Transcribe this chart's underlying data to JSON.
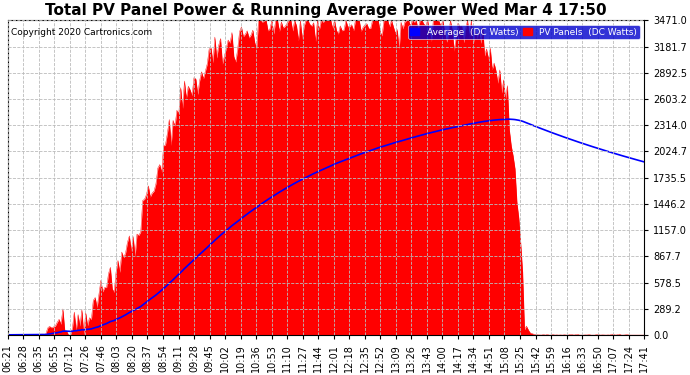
{
  "title": "Total PV Panel Power & Running Average Power Wed Mar 4 17:50",
  "copyright": "Copyright 2020 Cartronics.com",
  "legend_avg": "Average  (DC Watts)",
  "legend_pv": "PV Panels  (DC Watts)",
  "yticks": [
    0.0,
    289.2,
    578.5,
    867.7,
    1157.0,
    1446.2,
    1735.5,
    2024.7,
    2314.0,
    2603.2,
    2892.5,
    3181.7,
    3471.0
  ],
  "xtick_labels": [
    "06:21",
    "06:28",
    "06:35",
    "06:55",
    "07:12",
    "07:26",
    "07:46",
    "08:03",
    "08:20",
    "08:37",
    "08:54",
    "09:11",
    "09:28",
    "09:45",
    "10:02",
    "10:19",
    "10:36",
    "10:53",
    "11:10",
    "11:27",
    "11:44",
    "12:01",
    "12:18",
    "12:35",
    "12:52",
    "13:09",
    "13:26",
    "13:43",
    "14:00",
    "14:17",
    "14:34",
    "14:51",
    "15:08",
    "15:25",
    "15:42",
    "15:59",
    "16:16",
    "16:33",
    "16:50",
    "17:07",
    "17:24",
    "17:41"
  ],
  "pv_color": "#ff0000",
  "avg_color": "#0000ff",
  "background_color": "#ffffff",
  "grid_color": "#bbbbbb",
  "title_fontsize": 11,
  "axis_fontsize": 7,
  "ymax": 3471.0,
  "ymin": 0.0,
  "figwidth": 6.9,
  "figheight": 3.75,
  "dpi": 100
}
